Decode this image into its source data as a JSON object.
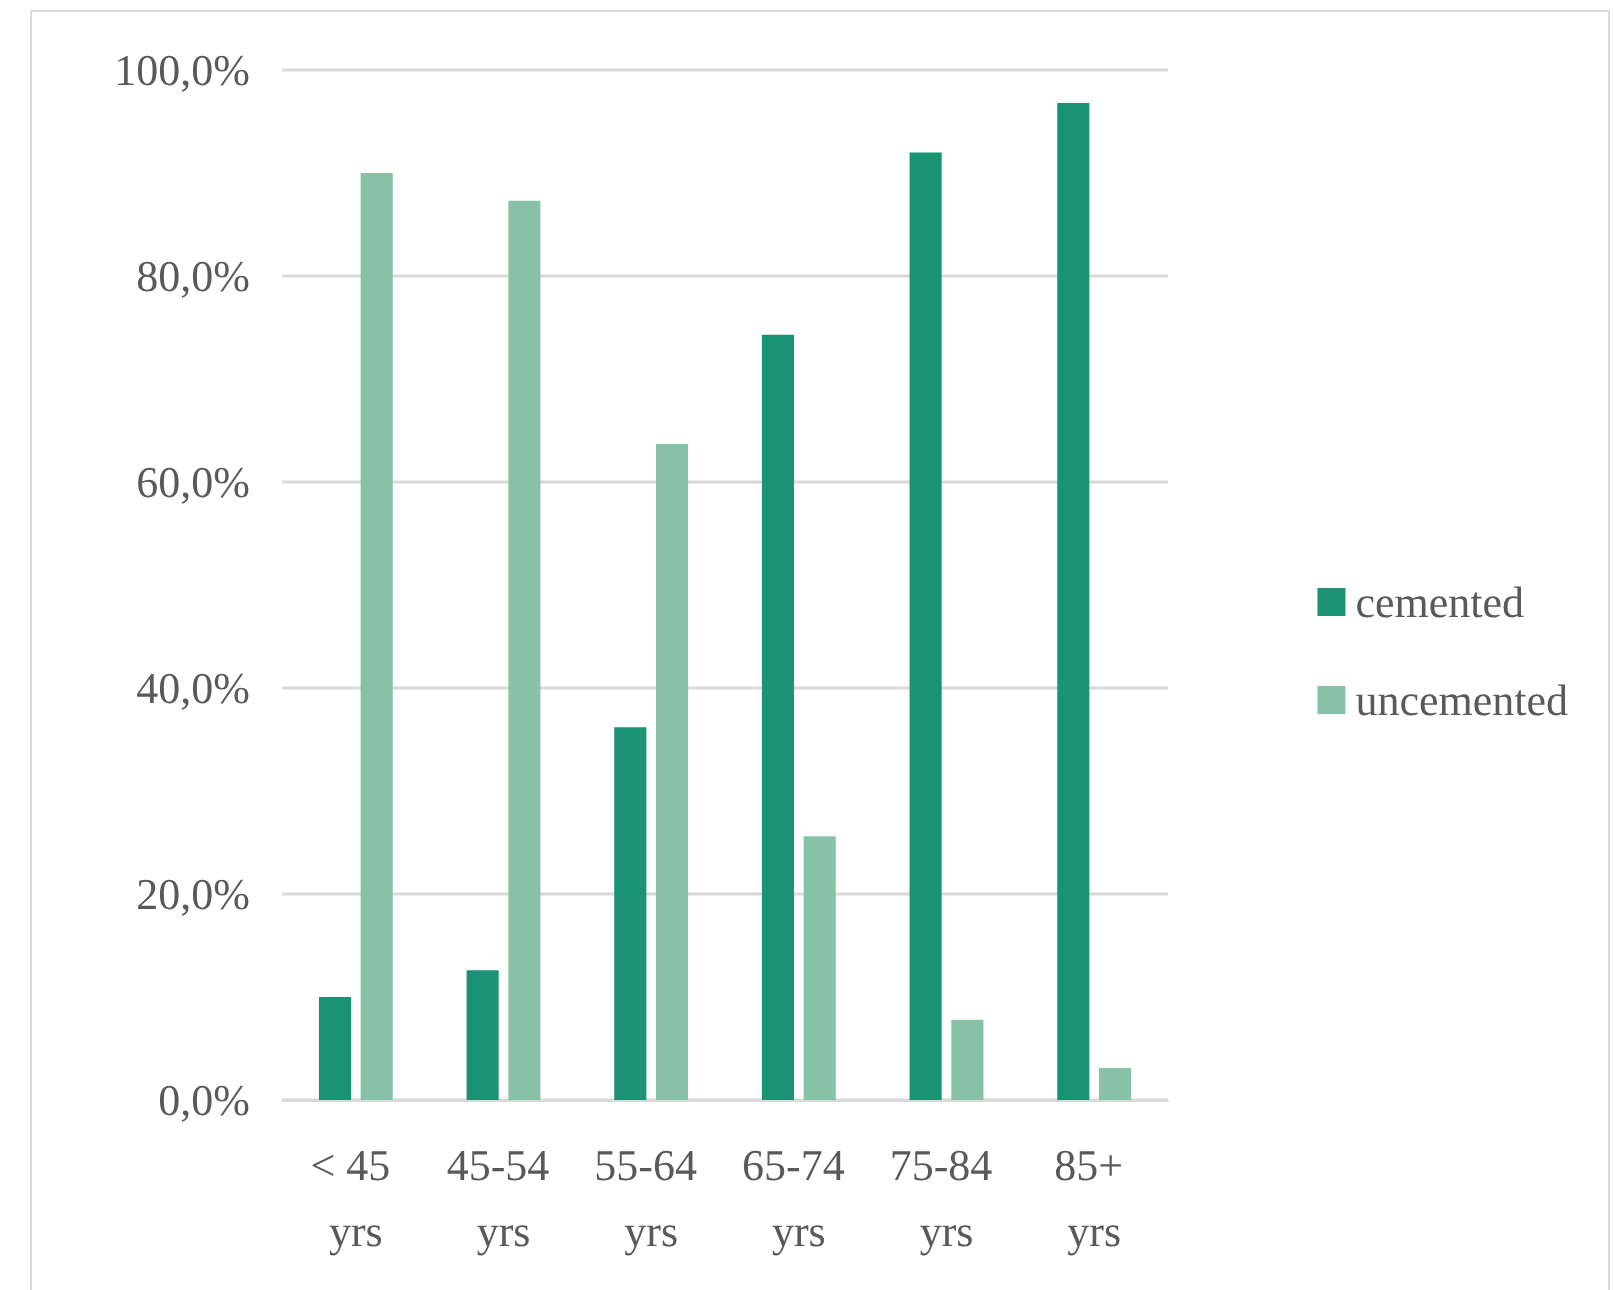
{
  "chart_data": {
    "type": "bar",
    "categories": [
      "< 45 yrs",
      "45-54 yrs",
      "55-64 yrs",
      "65-74 yrs",
      "75-84 yrs",
      "85+ yrs"
    ],
    "series": [
      {
        "name": "cemented",
        "color": "#1a9273",
        "values": [
          10.0,
          12.6,
          36.2,
          74.3,
          92.0,
          96.8
        ]
      },
      {
        "name": "uncemented",
        "color": "#87c2a7",
        "values": [
          90.0,
          87.3,
          63.7,
          25.6,
          7.8,
          3.1
        ]
      }
    ],
    "ylim": [
      0,
      100
    ],
    "yticks": [
      {
        "value": 0,
        "label": "0,0%"
      },
      {
        "value": 20,
        "label": "20,0%"
      },
      {
        "value": 40,
        "label": "40,0%"
      },
      {
        "value": 60,
        "label": "60,0%"
      },
      {
        "value": 80,
        "label": "80,0%"
      },
      {
        "value": 100,
        "label": "100,0%"
      }
    ],
    "grid": "y",
    "legend": "right"
  }
}
